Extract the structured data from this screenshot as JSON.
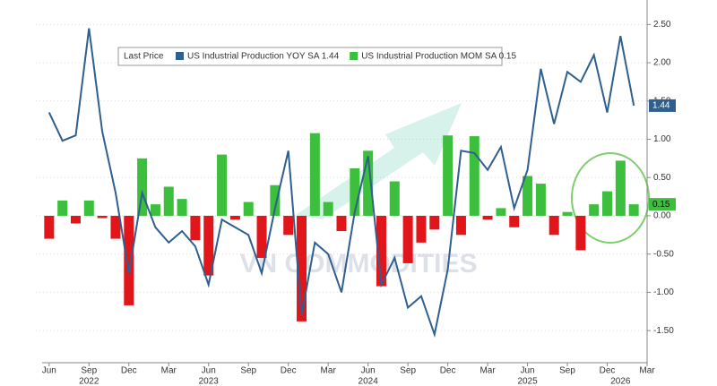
{
  "chart_data": {
    "type": "bar_line",
    "watermark": "VN COMMODITIES",
    "legend_title": "Last Price",
    "x": [
      "2022-06",
      "2022-07",
      "2022-08",
      "2022-09",
      "2022-10",
      "2022-11",
      "2022-12",
      "2023-01",
      "2023-02",
      "2023-03",
      "2023-04",
      "2023-05",
      "2023-06",
      "2023-07",
      "2023-08",
      "2023-09",
      "2023-10",
      "2023-11",
      "2023-12",
      "2024-01",
      "2024-02",
      "2024-03",
      "2024-04",
      "2024-05",
      "2024-06",
      "2024-07",
      "2024-08",
      "2024-09",
      "2024-10",
      "2024-11",
      "2024-12",
      "2025-01",
      "2025-02",
      "2025-03",
      "2025-04",
      "2025-05",
      "2025-06",
      "2025-07",
      "2025-08",
      "2025-09",
      "2025-10",
      "2025-11",
      "2025-12",
      "2026-01",
      "2026-02"
    ],
    "xlim": [
      "2022-05",
      "2026-03"
    ],
    "xticks": [
      {
        "value": "2022-06",
        "label": "Jun"
      },
      {
        "value": "2022-09",
        "label": "Sep"
      },
      {
        "value": "2022-12",
        "label": "Dec"
      },
      {
        "value": "2023-03",
        "label": "Mar"
      },
      {
        "value": "2023-06",
        "label": "Jun"
      },
      {
        "value": "2023-09",
        "label": "Sep"
      },
      {
        "value": "2023-12",
        "label": "Dec"
      },
      {
        "value": "2024-03",
        "label": "Mar"
      },
      {
        "value": "2024-06",
        "label": "Jun"
      },
      {
        "value": "2024-09",
        "label": "Sep"
      },
      {
        "value": "2024-12",
        "label": "Dec"
      },
      {
        "value": "2025-03",
        "label": "Mar"
      },
      {
        "value": "2025-06",
        "label": "Jun"
      },
      {
        "value": "2025-09",
        "label": "Sep"
      },
      {
        "value": "2025-12",
        "label": "Dec"
      },
      {
        "value": "2026-03",
        "label": "Mar"
      }
    ],
    "year_labels": [
      {
        "value": "2022-09",
        "label": "2022"
      },
      {
        "value": "2023-06",
        "label": "2023"
      },
      {
        "value": "2024-06",
        "label": "2024"
      },
      {
        "value": "2025-06",
        "label": "2025"
      },
      {
        "value": "2026-01",
        "label": "2026"
      }
    ],
    "ylim": [
      -1.92,
      2.82
    ],
    "yticks": [
      {
        "value": 2.5,
        "label": "2.50"
      },
      {
        "value": 2,
        "label": "2.00"
      },
      {
        "value": 1.5,
        "label": "1.50"
      },
      {
        "value": 1,
        "label": "1.00"
      },
      {
        "value": 0.5,
        "label": "0.50"
      },
      {
        "value": 0,
        "label": "0.00"
      },
      {
        "value": -0.5,
        "label": "-0.50"
      },
      {
        "value": -1,
        "label": "-1.00"
      },
      {
        "value": -1.5,
        "label": "-1.50"
      }
    ],
    "grid": true,
    "series": [
      {
        "name": "US Industrial Production YOY SA 1.44",
        "kind": "line",
        "color": "#2f5f8f",
        "last_label": "1.44",
        "values": [
          1.35,
          0.98,
          1.05,
          2.45,
          1.1,
          0.3,
          -0.75,
          0.3,
          -0.15,
          -0.35,
          -0.2,
          -0.4,
          -0.9,
          -0.05,
          -0.15,
          -0.25,
          -0.75,
          0.1,
          0.85,
          -1.3,
          -0.35,
          -0.5,
          -1.0,
          0.05,
          0.78,
          -0.9,
          -0.55,
          -1.2,
          -1.05,
          -1.55,
          -0.7,
          0.85,
          0.82,
          0.6,
          0.9,
          0.1,
          0.6,
          1.92,
          1.2,
          1.88,
          1.75,
          2.1,
          1.35,
          2.35,
          1.44
        ]
      },
      {
        "name": "US Industrial Production MOM SA 0.15",
        "kind": "bar",
        "color": "#3cbf3c",
        "negative_color": "#e0161b",
        "last_label": "0.15",
        "values": [
          -0.3,
          0.2,
          -0.1,
          0.2,
          -0.03,
          -0.3,
          -1.17,
          0.75,
          0.15,
          0.38,
          0.22,
          -0.32,
          -0.78,
          0.8,
          -0.05,
          0.18,
          -0.55,
          0.4,
          -0.25,
          -1.38,
          1.08,
          0.18,
          -0.2,
          0.62,
          0.85,
          -0.92,
          0.45,
          -0.62,
          -0.35,
          -0.18,
          1.05,
          -0.25,
          1.04,
          -0.05,
          0.1,
          -0.15,
          0.52,
          0.42,
          -0.25,
          0.05,
          -0.45,
          0.15,
          0.32,
          0.72,
          0.15
        ]
      }
    ]
  }
}
